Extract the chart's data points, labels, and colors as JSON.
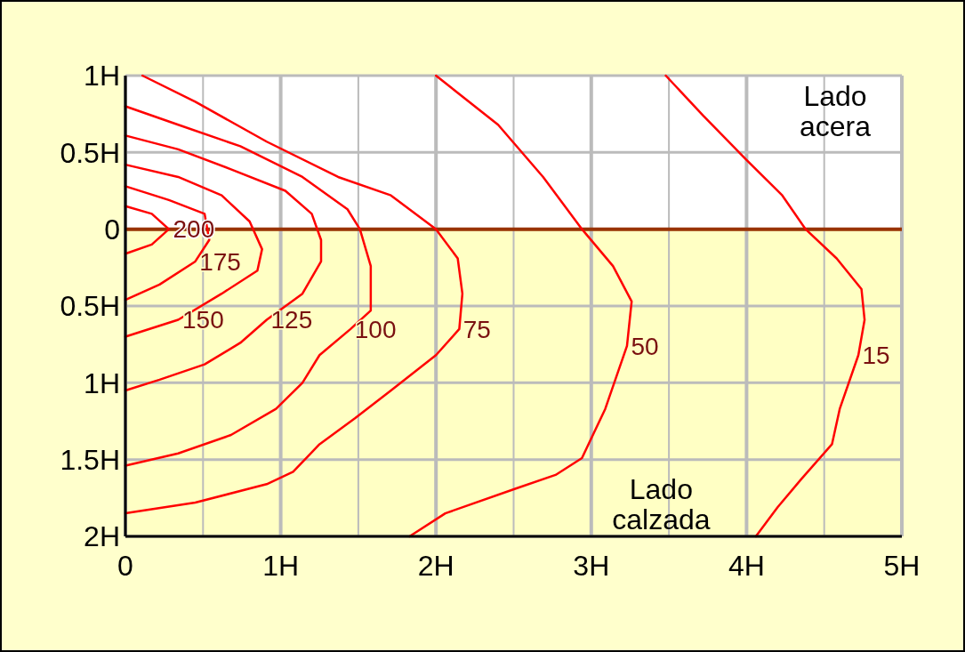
{
  "chart_data": {
    "type": "line",
    "xlim": [
      0,
      5
    ],
    "ylim": [
      -2,
      1
    ],
    "xticks": [
      {
        "value": 0,
        "label": "0"
      },
      {
        "value": 0.5,
        "label": null
      },
      {
        "value": 1,
        "label": "1H"
      },
      {
        "value": 1.5,
        "label": null
      },
      {
        "value": 2,
        "label": "2H"
      },
      {
        "value": 2.5,
        "label": null
      },
      {
        "value": 3,
        "label": "3H"
      },
      {
        "value": 3.5,
        "label": null
      },
      {
        "value": 4,
        "label": "4H"
      },
      {
        "value": 4.5,
        "label": null
      },
      {
        "value": 5,
        "label": "5H"
      }
    ],
    "yticks": [
      {
        "value": 1,
        "label": "1H"
      },
      {
        "value": 0.5,
        "label": "0.5H"
      },
      {
        "value": 0,
        "label": "0"
      },
      {
        "value": -0.5,
        "label": "0.5H"
      },
      {
        "value": -1,
        "label": "1H"
      },
      {
        "value": -1.5,
        "label": "1.5H"
      },
      {
        "value": -2,
        "label": "2H"
      }
    ],
    "grid": true,
    "marker": "none",
    "line_style": "solid",
    "bands": [
      {
        "axis": "y",
        "from": 0,
        "to": 1,
        "color": "#ffffff",
        "label": "Lado acera"
      },
      {
        "axis": "y",
        "from": -2,
        "to": 0,
        "color": "#ffffc4",
        "label": "Lado calzada"
      }
    ],
    "ref_lines": [
      {
        "axis": "y",
        "value": 0,
        "color": "#993300"
      }
    ],
    "series": [
      {
        "color": "#ff0000",
        "x": [
          0,
          0.17,
          0.28,
          0.17,
          0
        ],
        "values": [
          0.15,
          0.1,
          0,
          -0.1,
          -0.16
        ]
      },
      {
        "color": "#ff0000",
        "x": [
          0,
          0.28,
          0.51,
          0.54,
          0.45,
          0.22,
          0
        ],
        "values": [
          0.28,
          0.19,
          0.1,
          -0.07,
          -0.21,
          -0.36,
          -0.46
        ]
      },
      {
        "color": "#ff0000",
        "x": [
          0,
          0.34,
          0.62,
          0.8,
          0.88,
          0.85,
          0.62,
          0.34,
          0
        ],
        "values": [
          0.42,
          0.34,
          0.22,
          0.05,
          -0.13,
          -0.27,
          -0.42,
          -0.59,
          -0.7
        ]
      },
      {
        "color": "#ff0000",
        "x": [
          0,
          0.34,
          0.68,
          1.03,
          1.2,
          1.26,
          1.26,
          1.14,
          0.91,
          0.74,
          0.51,
          0.22,
          0
        ],
        "values": [
          0.61,
          0.52,
          0.39,
          0.25,
          0.1,
          -0.07,
          -0.21,
          -0.42,
          -0.59,
          -0.74,
          -0.88,
          -0.98,
          -1.05
        ]
      },
      {
        "color": "#ff0000",
        "x": [
          0,
          0.34,
          0.74,
          1.14,
          1.43,
          1.51,
          1.58,
          1.58,
          1.45,
          1.25,
          1.14,
          0.97,
          0.68,
          0.34,
          0
        ],
        "values": [
          0.8,
          0.68,
          0.54,
          0.34,
          0.13,
          0,
          -0.24,
          -0.53,
          -0.65,
          -0.82,
          -1,
          -1.17,
          -1.34,
          -1.46,
          -1.54
        ]
      },
      {
        "color": "#ff0000",
        "x": [
          0.11,
          0.45,
          0.91,
          1.37,
          1.71,
          2,
          2.14,
          2.17,
          2.15,
          2,
          1.71,
          1.48,
          1.25,
          1.08,
          0.91,
          0.45,
          0
        ],
        "values": [
          1,
          0.83,
          0.57,
          0.34,
          0.22,
          0,
          -0.19,
          -0.42,
          -0.65,
          -0.82,
          -1.05,
          -1.23,
          -1.4,
          -1.58,
          -1.66,
          -1.78,
          -1.85
        ]
      },
      {
        "color": "#ff0000",
        "x": [
          2,
          2.4,
          2.69,
          2.94,
          3.14,
          3.26,
          3.23,
          3.09,
          2.94,
          2.77,
          2.51,
          2.06,
          1.83
        ],
        "values": [
          1,
          0.68,
          0.34,
          0,
          -0.24,
          -0.47,
          -0.76,
          -1.17,
          -1.49,
          -1.6,
          -1.69,
          -1.85,
          -2
        ]
      },
      {
        "color": "#ff0000",
        "x": [
          3.48,
          3.72,
          4,
          4.23,
          4.38,
          4.58,
          4.74,
          4.76,
          4.72,
          4.6,
          4.55,
          4.35,
          4.2,
          4.06
        ],
        "values": [
          1,
          0.74,
          0.45,
          0.22,
          0,
          -0.19,
          -0.39,
          -0.59,
          -0.82,
          -1.17,
          -1.4,
          -1.63,
          -1.81,
          -2
        ]
      }
    ],
    "annotations": [
      {
        "text": "200",
        "x": 0.28,
        "y": 0
      },
      {
        "text": "175",
        "x": 0.45,
        "y": -0.21
      },
      {
        "text": "150",
        "x": 0.34,
        "y": -0.59
      },
      {
        "text": "125",
        "x": 0.91,
        "y": -0.59
      },
      {
        "text": "100",
        "x": 1.45,
        "y": -0.65
      },
      {
        "text": "75",
        "x": 2.15,
        "y": -0.65
      },
      {
        "text": "50",
        "x": 3.23,
        "y": -0.76
      },
      {
        "text": "15",
        "x": 4.72,
        "y": -0.82
      }
    ]
  }
}
